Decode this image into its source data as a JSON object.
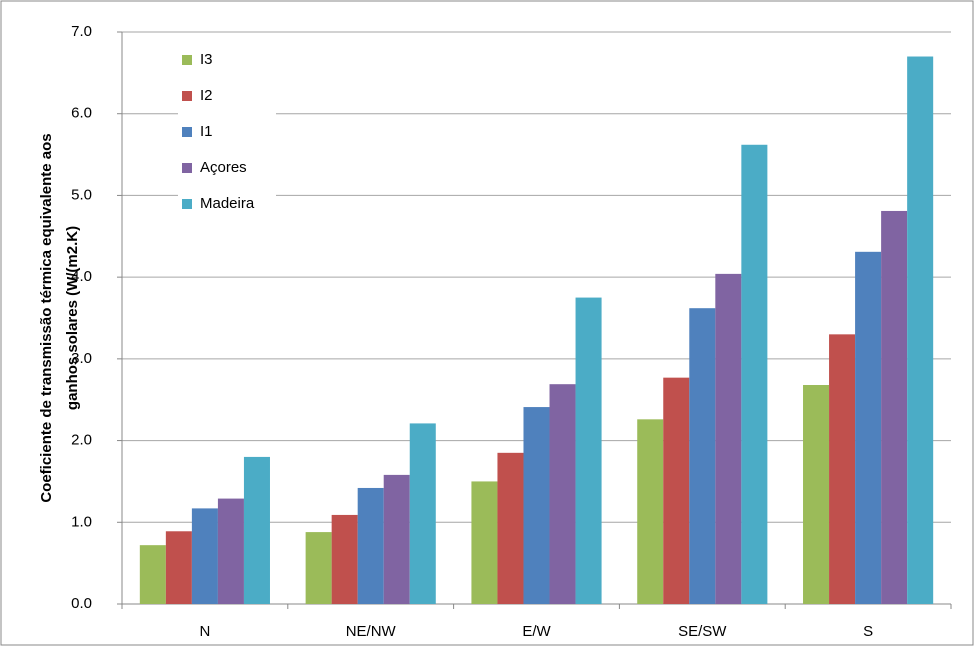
{
  "chart_data": {
    "type": "bar",
    "ylabel": [
      "Coeficiente de transmissão térmica equivalente aos",
      "ganhos solares (W/(m2.K)"
    ],
    "categories": [
      "N",
      "NE/NW",
      "E/W",
      "SE/SW",
      "S"
    ],
    "series": [
      {
        "name": "I3",
        "color": "#9bbb59",
        "values": [
          0.72,
          0.88,
          1.5,
          2.26,
          2.68
        ]
      },
      {
        "name": "I2",
        "color": "#c0504d",
        "values": [
          0.89,
          1.09,
          1.85,
          2.77,
          3.3
        ]
      },
      {
        "name": "I1",
        "color": "#4f81bd",
        "values": [
          1.17,
          1.42,
          2.41,
          3.62,
          4.31
        ]
      },
      {
        "name": "Açores",
        "color": "#8064a2",
        "values": [
          1.29,
          1.58,
          2.69,
          4.04,
          4.81
        ]
      },
      {
        "name": "Madeira",
        "color": "#4bacc6",
        "values": [
          1.8,
          2.21,
          3.75,
          5.62,
          6.7
        ]
      }
    ],
    "ylim": [
      0,
      7
    ],
    "yticks": [
      {
        "value": 0,
        "label": "0.0"
      },
      {
        "value": 1,
        "label": "1.0"
      },
      {
        "value": 2,
        "label": "2.0"
      },
      {
        "value": 3,
        "label": "3.0"
      },
      {
        "value": 4,
        "label": "4.0"
      },
      {
        "value": 5,
        "label": "5.0"
      },
      {
        "value": 6,
        "label": "6.0"
      },
      {
        "value": 7,
        "label": "7.0"
      }
    ],
    "grid": true,
    "legend": "upper-left"
  }
}
